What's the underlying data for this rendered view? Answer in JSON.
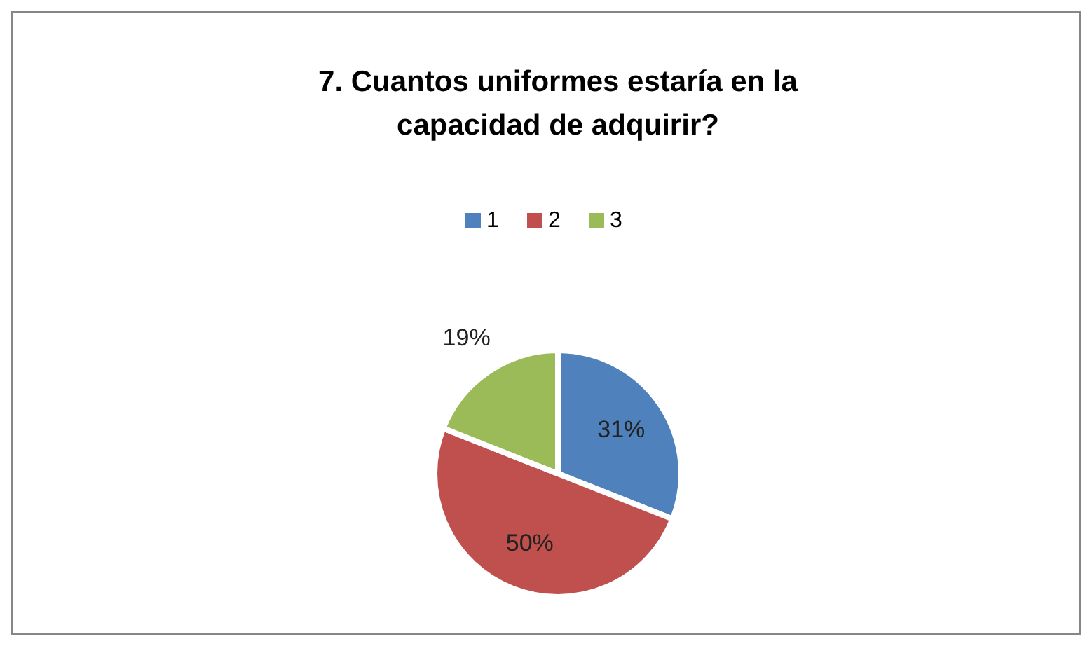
{
  "chart_data": {
    "type": "pie",
    "title": "7.    Cuantos uniformes estaría en la\ncapacidad de adquirir?",
    "categories": [
      "1",
      "2",
      "3"
    ],
    "values": [
      31,
      50,
      19
    ],
    "value_labels": [
      "31%",
      "50%",
      "19%"
    ],
    "colors": [
      "#4f81bd",
      "#c0504d",
      "#9bbb59"
    ],
    "legend": "top"
  }
}
